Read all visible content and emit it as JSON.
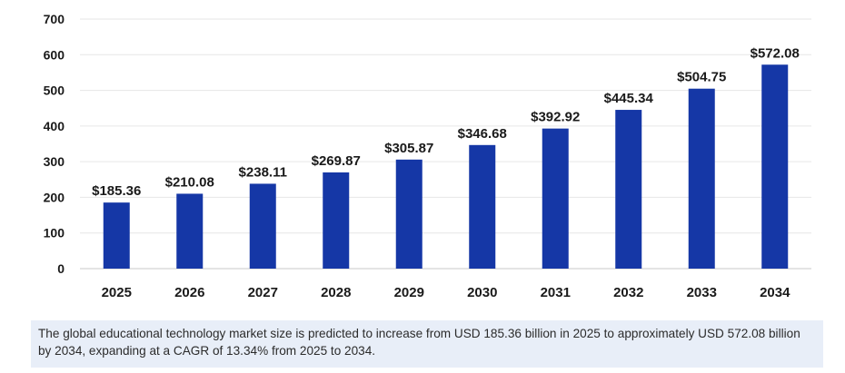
{
  "chart_data": {
    "type": "bar",
    "categories": [
      "2025",
      "2026",
      "2027",
      "2028",
      "2029",
      "2030",
      "2031",
      "2032",
      "2033",
      "2034"
    ],
    "values": [
      185.36,
      210.08,
      238.11,
      269.87,
      305.87,
      346.68,
      392.92,
      445.34,
      504.75,
      572.08
    ],
    "value_labels": [
      "$185.36",
      "$210.08",
      "$238.11",
      "$269.87",
      "$305.87",
      "$346.68",
      "$392.92",
      "$445.34",
      "$504.75",
      "$572.08"
    ],
    "y_ticks": [
      0,
      100,
      200,
      300,
      400,
      500,
      600,
      700
    ],
    "ylim": [
      0,
      700
    ],
    "grid": true,
    "legend": "none",
    "bar_color": "#1537a6",
    "gridline_color": "#e6e6e6",
    "title": "",
    "xlabel": "",
    "ylabel": ""
  },
  "caption": {
    "text": "The global educational technology market size is predicted to increase from USD 185.36 billion in 2025 to approximately USD 572.08 billion by 2034, expanding at a CAGR of 13.34% from 2025 to 2034.",
    "background": "#e8eef8"
  }
}
